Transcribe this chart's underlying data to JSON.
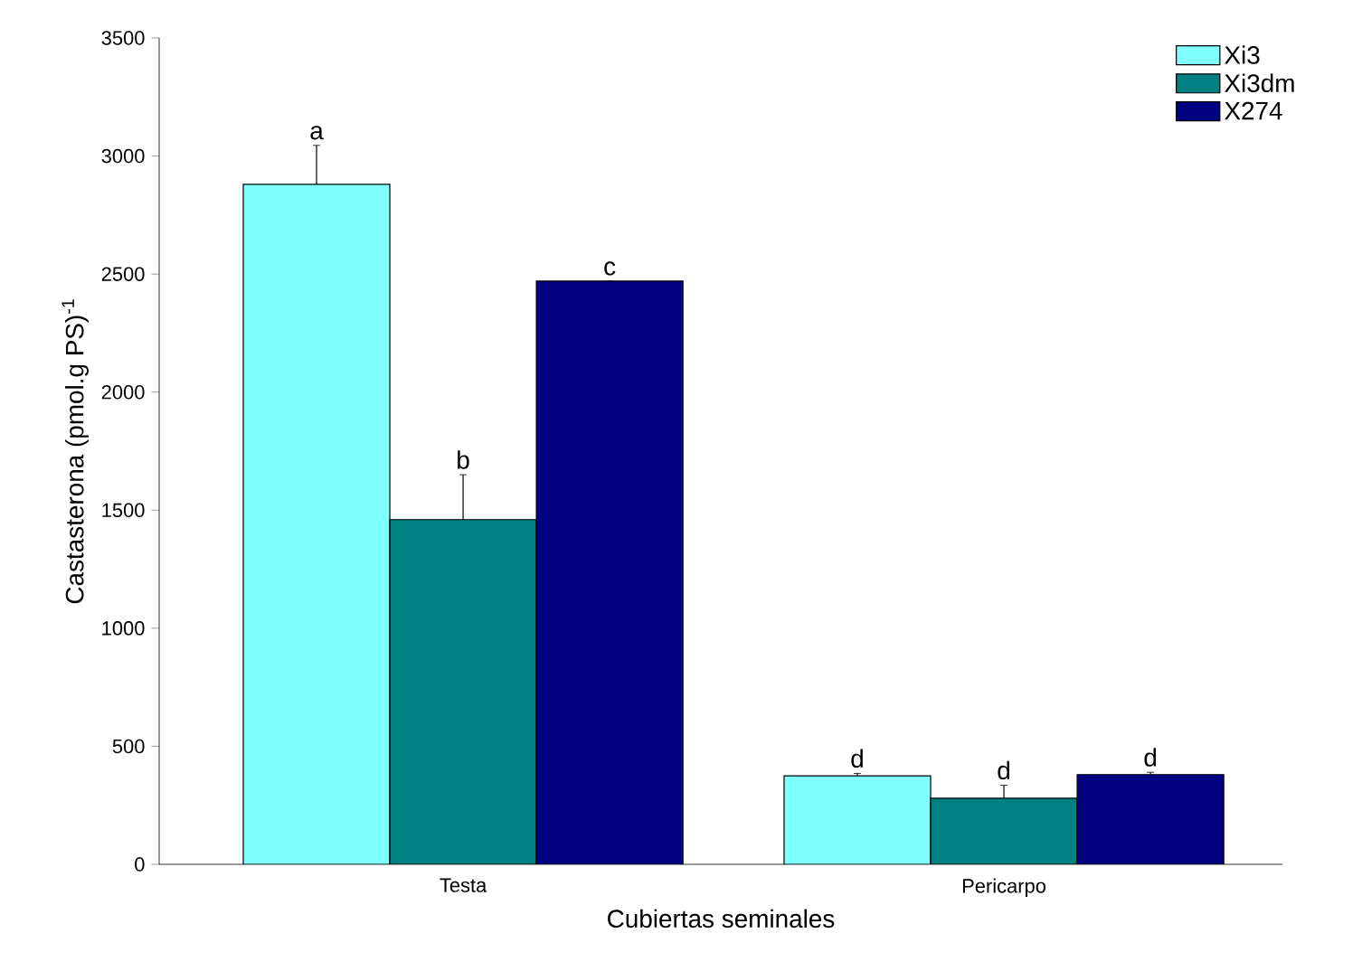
{
  "chart_data": {
    "type": "bar",
    "xlabel": "Cubiertas seminales",
    "ylabel": "Castasterona (pmol.g PS)$^{-1}$",
    "categories": [
      "Testa",
      "Pericarpo"
    ],
    "series": [
      {
        "name": "Xi3",
        "color": "#80ffff",
        "values": [
          2880,
          375
        ],
        "errors": [
          165,
          10
        ]
      },
      {
        "name": "Xi3dm",
        "color": "#008080",
        "values": [
          1460,
          280
        ],
        "errors": [
          190,
          55
        ]
      },
      {
        "name": "X274",
        "color": "#000080",
        "values": [
          2470,
          380
        ],
        "errors": [
          null,
          10
        ]
      }
    ],
    "ylim": [
      0,
      3500
    ],
    "yticks": [
      0,
      500,
      1000,
      1500,
      2000,
      2500,
      3000,
      3500
    ],
    "annotations": [
      "a",
      "b",
      "c",
      "d",
      "d",
      "d"
    ],
    "legend": "top right",
    "grid": false
  }
}
